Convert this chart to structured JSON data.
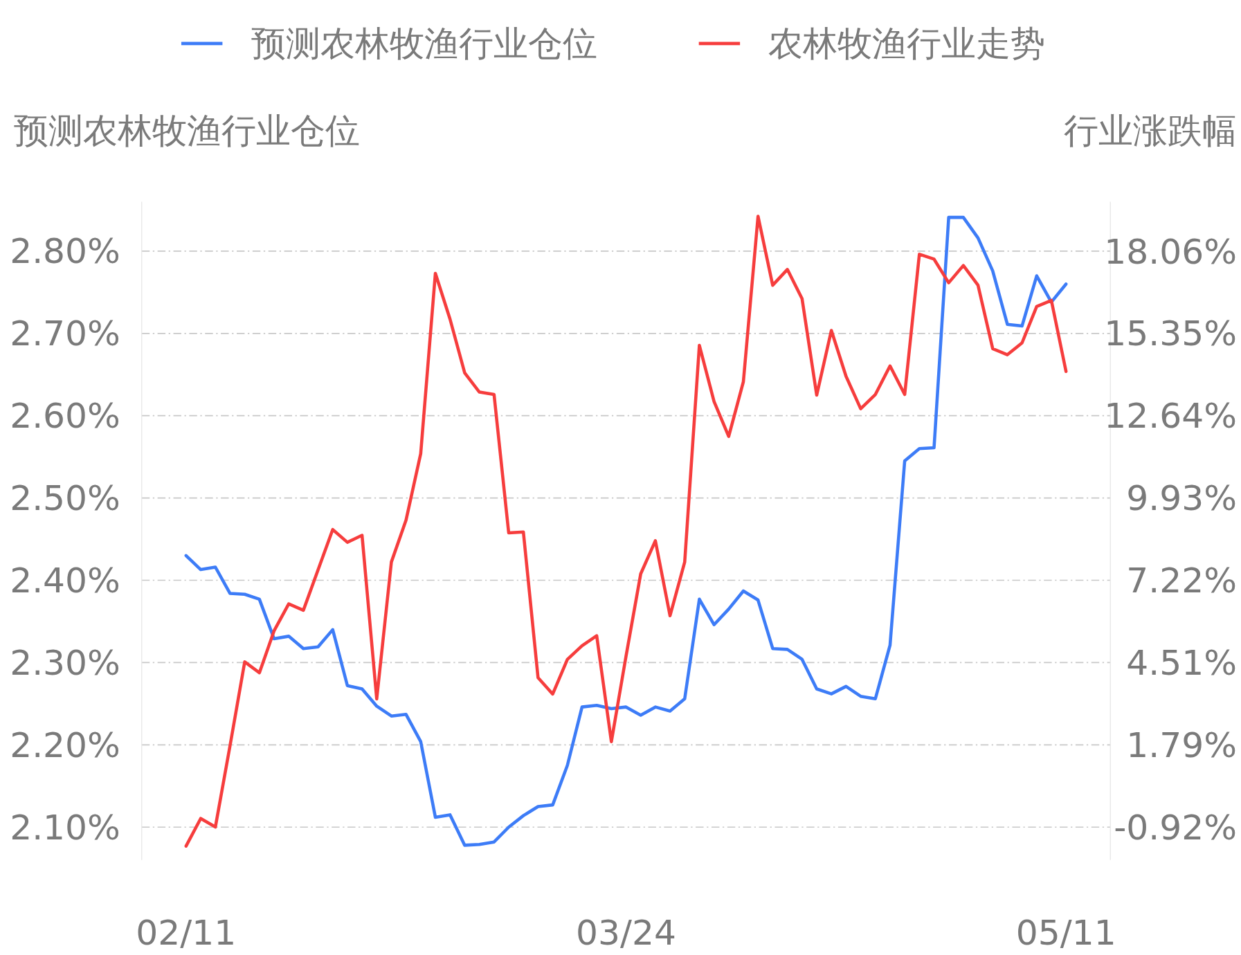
{
  "chart_data": {
    "type": "line",
    "ylabel": "预测农林牧渔行业仓位",
    "y2label": "行业涨跌幅",
    "categories": [
      "02/11",
      null,
      null,
      null,
      null,
      null,
      null,
      null,
      null,
      null,
      null,
      null,
      null,
      null,
      null,
      null,
      null,
      null,
      null,
      null,
      null,
      null,
      null,
      null,
      null,
      null,
      null,
      null,
      null,
      null,
      "03/24",
      null,
      null,
      null,
      null,
      null,
      null,
      null,
      null,
      null,
      null,
      null,
      null,
      null,
      null,
      null,
      null,
      null,
      null,
      null,
      null,
      null,
      null,
      null,
      null,
      null,
      null,
      null,
      null,
      null,
      "05/11"
    ],
    "ylim": [
      2.06,
      2.86
    ],
    "yticks": [
      {
        "value": 2.1,
        "label": "2.10%"
      },
      {
        "value": 2.2,
        "label": "2.20%"
      },
      {
        "value": 2.3,
        "label": "2.30%"
      },
      {
        "value": 2.4,
        "label": "2.40%"
      },
      {
        "value": 2.5,
        "label": "2.50%"
      },
      {
        "value": 2.6,
        "label": "2.60%"
      },
      {
        "value": 2.7,
        "label": "2.70%"
      },
      {
        "value": 2.8,
        "label": "2.80%"
      }
    ],
    "y2lim": [
      -2.0,
      19.69
    ],
    "y2ticks": [
      {
        "value": -0.92,
        "label": "-0.92%"
      },
      {
        "value": 1.79,
        "label": "1.79%"
      },
      {
        "value": 4.51,
        "label": "4.51%"
      },
      {
        "value": 7.22,
        "label": "7.22%"
      },
      {
        "value": 9.93,
        "label": "9.93%"
      },
      {
        "value": 12.64,
        "label": "12.64%"
      },
      {
        "value": 15.35,
        "label": "15.35%"
      },
      {
        "value": 18.06,
        "label": "18.06%"
      }
    ],
    "grid": "y",
    "legend": "top",
    "marker": "none",
    "line_style": "solid",
    "series": [
      {
        "name": "预测农林牧渔行业仓位",
        "color": "#3d7cf7",
        "values": [
          2.43,
          2.413,
          2.416,
          2.384,
          2.383,
          2.377,
          2.329,
          2.332,
          2.317,
          2.319,
          2.34,
          2.272,
          2.268,
          2.247,
          2.235,
          2.237,
          2.204,
          2.112,
          2.115,
          2.078,
          2.079,
          2.082,
          2.1,
          2.114,
          2.125,
          2.127,
          2.175,
          2.246,
          2.248,
          2.244,
          2.246,
          2.236,
          2.246,
          2.241,
          2.256,
          2.377,
          2.346,
          2.365,
          2.387,
          2.376,
          2.317,
          2.316,
          2.304,
          2.268,
          2.262,
          2.271,
          2.259,
          2.256,
          2.321,
          2.545,
          2.56,
          2.561,
          2.841,
          2.841,
          2.816,
          2.776,
          2.711,
          2.709,
          2.77,
          2.738,
          2.76
        ]
      },
      {
        "name": "农林牧渔行业走势",
        "color": "#f63d3d",
        "axis": "y2",
        "values": [
          -1.54,
          -0.63,
          -0.91,
          1.77,
          4.53,
          4.17,
          5.55,
          6.44,
          6.23,
          7.56,
          8.89,
          8.47,
          8.7,
          3.31,
          7.82,
          9.2,
          11.39,
          17.33,
          15.82,
          14.05,
          13.42,
          13.34,
          8.78,
          8.81,
          4.01,
          3.47,
          4.61,
          5.06,
          5.39,
          1.9,
          4.72,
          7.43,
          8.52,
          6.05,
          7.82,
          14.96,
          13.11,
          11.96,
          13.76,
          19.21,
          16.94,
          17.46,
          16.5,
          13.32,
          15.45,
          13.94,
          12.87,
          13.34,
          14.28,
          13.34,
          17.96,
          17.8,
          17.02,
          17.59,
          16.94,
          14.85,
          14.65,
          15.04,
          16.24,
          16.44,
          14.1
        ]
      }
    ]
  }
}
